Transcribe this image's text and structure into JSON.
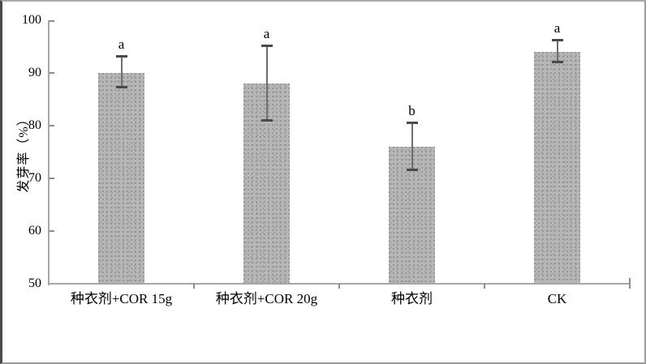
{
  "chart_data": {
    "type": "bar",
    "title": "",
    "xlabel": "",
    "ylabel": "发芽率（%）",
    "categories": [
      "种衣剂+COR 15g",
      "种衣剂+COR 20g",
      "种衣剂",
      "CK"
    ],
    "values": [
      90,
      88,
      76,
      94
    ],
    "error_plus": [
      3.3,
      7.2,
      4.6,
      2.3
    ],
    "error_minus": [
      2.8,
      7.0,
      4.4,
      2.0
    ],
    "sig_letters": [
      "a",
      "a",
      "b",
      "a"
    ],
    "ylim": [
      50,
      100
    ],
    "yticks": [
      50,
      60,
      70,
      80,
      90,
      100
    ],
    "ytick_step": 10,
    "grid": false,
    "legend": false,
    "bar_color": "#b6b6b6",
    "bar_dot_color": "#979797",
    "axis_color": "#a6a6a6",
    "tick_color": "#8c8c8c",
    "error_line_color": "#6e6e6e",
    "error_cap_color": "#4a4a4a",
    "text_color": "#000000",
    "frame_border_color": "#9b9b9b"
  }
}
